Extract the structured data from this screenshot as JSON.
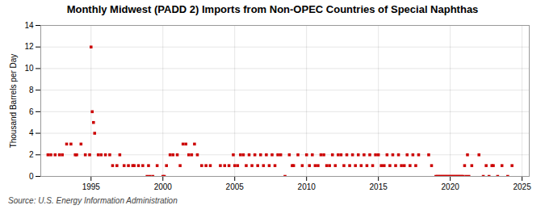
{
  "chart_data": {
    "type": "scatter",
    "title": "Monthly Midwest (PADD 2) Imports from Non-OPEC Countries of Special Naphthas",
    "ylabel": "Thousand Barrels per Day",
    "source": "Source: U.S. Energy Information Administration",
    "color": "#cc0000",
    "marker": "square",
    "grid": true,
    "xlim": [
      1991.5,
      2025.5
    ],
    "ylim": [
      0,
      14
    ],
    "xticks": [
      1995,
      2000,
      2005,
      2010,
      2015,
      2020,
      2025
    ],
    "yticks": [
      0,
      2,
      4,
      6,
      8,
      10,
      12,
      14
    ],
    "x": [
      1992.0,
      1992.2,
      1992.5,
      1992.8,
      1993.0,
      1993.3,
      1993.6,
      1993.9,
      1994.0,
      1994.3,
      1994.6,
      1994.9,
      1995.0,
      1995.08,
      1995.17,
      1995.25,
      1995.5,
      1995.7,
      1996.0,
      1996.3,
      1996.5,
      1996.8,
      1997.0,
      1997.3,
      1997.6,
      1997.9,
      1998.0,
      1998.3,
      1998.6,
      1998.9,
      1999.0,
      1999.1,
      1999.3,
      1999.6,
      2000.0,
      2000.1,
      2000.25,
      2000.5,
      2000.7,
      2001.0,
      2001.2,
      2001.4,
      2001.6,
      2001.8,
      2002.0,
      2002.2,
      2002.4,
      2002.7,
      2003.0,
      2003.3,
      2004.0,
      2004.3,
      2004.6,
      2004.9,
      2005.0,
      2005.2,
      2005.4,
      2005.6,
      2005.8,
      2006.0,
      2006.2,
      2006.4,
      2006.6,
      2006.8,
      2007.0,
      2007.2,
      2007.4,
      2007.6,
      2007.8,
      2008.0,
      2008.2,
      2008.5,
      2008.8,
      2009.0,
      2009.1,
      2009.4,
      2009.7,
      2010.0,
      2010.2,
      2010.4,
      2010.6,
      2010.8,
      2011.0,
      2011.2,
      2011.4,
      2011.6,
      2011.8,
      2012.0,
      2012.2,
      2012.4,
      2012.6,
      2012.8,
      2013.0,
      2013.2,
      2013.4,
      2013.6,
      2013.8,
      2014.0,
      2014.2,
      2014.4,
      2014.6,
      2014.8,
      2015.0,
      2015.2,
      2015.4,
      2015.6,
      2015.8,
      2016.0,
      2016.2,
      2016.4,
      2016.6,
      2016.8,
      2017.0,
      2017.2,
      2017.4,
      2017.6,
      2017.8,
      2018.5,
      2018.7,
      2019.0,
      2019.1,
      2019.2,
      2019.3,
      2019.4,
      2019.5,
      2019.6,
      2019.7,
      2019.8,
      2019.9,
      2020.0,
      2020.1,
      2020.2,
      2020.3,
      2020.4,
      2020.5,
      2020.6,
      2020.7,
      2020.8,
      2020.9,
      2021.0,
      2021.1,
      2021.2,
      2021.3,
      2021.5,
      2022.0,
      2022.3,
      2022.5,
      2022.7,
      2022.9,
      2023.0,
      2023.3,
      2023.6,
      2024.0,
      2024.3
    ],
    "values": [
      2,
      2,
      2,
      2,
      2,
      3,
      3,
      2,
      2,
      3,
      2,
      2,
      12,
      6,
      5,
      4,
      2,
      2,
      2,
      2,
      1,
      1,
      2,
      1,
      1,
      1,
      1,
      1,
      1,
      0,
      1,
      0,
      0,
      1,
      0,
      0,
      1,
      2,
      2,
      2,
      1,
      3,
      3,
      2,
      2,
      3,
      2,
      1,
      1,
      1,
      1,
      1,
      1,
      2,
      1,
      1,
      2,
      2,
      1,
      2,
      1,
      2,
      1,
      2,
      1,
      2,
      1,
      2,
      1,
      2,
      2,
      0,
      2,
      1,
      1,
      2,
      1,
      2,
      1,
      2,
      1,
      1,
      2,
      2,
      1,
      1,
      2,
      1,
      2,
      2,
      1,
      2,
      1,
      2,
      1,
      2,
      1,
      2,
      1,
      2,
      1,
      2,
      2,
      1,
      1,
      2,
      1,
      2,
      1,
      2,
      1,
      1,
      2,
      1,
      2,
      1,
      2,
      2,
      1,
      0,
      0,
      0,
      0,
      0,
      0,
      0,
      0,
      0,
      0,
      0,
      0,
      0,
      0,
      0,
      0,
      0,
      0,
      0,
      0,
      1,
      0,
      2,
      0,
      1,
      2,
      0,
      1,
      0,
      1,
      1,
      0,
      1,
      0,
      1
    ]
  }
}
